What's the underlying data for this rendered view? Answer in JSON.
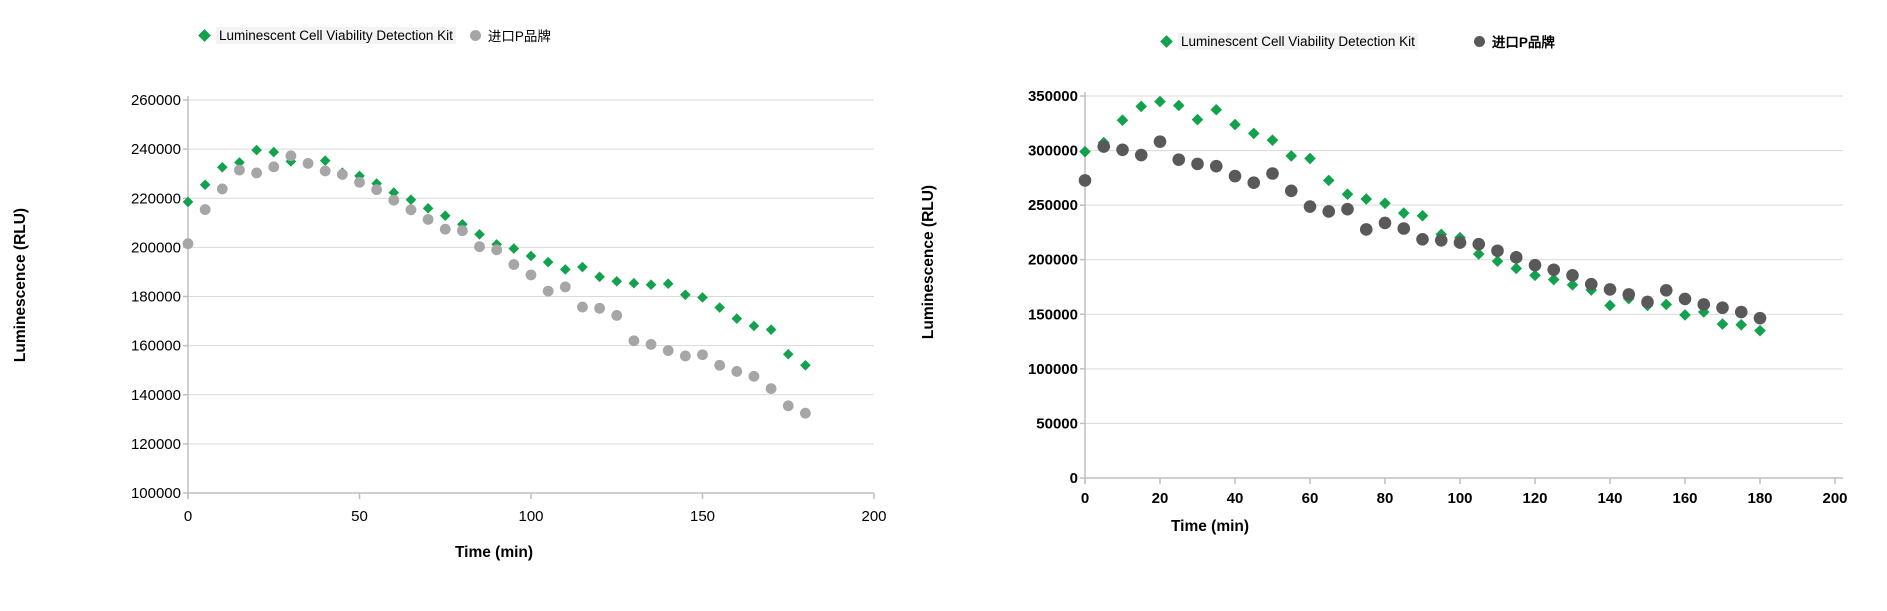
{
  "page": {
    "background": "#FFFFFF"
  },
  "chart_data": [
    {
      "type": "scatter",
      "position": "left",
      "title": "",
      "xlabel": "Time (min)",
      "ylabel": "Luminescence  (RLU)",
      "xlim": [
        0,
        200
      ],
      "ylim": [
        100000,
        260000
      ],
      "x_ticks": [
        0,
        50,
        100,
        150,
        200
      ],
      "y_ticks": [
        100000,
        120000,
        140000,
        160000,
        180000,
        200000,
        220000,
        240000,
        260000
      ],
      "grid": "horizontal",
      "legend_position": "top",
      "x": [
        0,
        5,
        10,
        15,
        20,
        25,
        30,
        35,
        40,
        45,
        50,
        55,
        60,
        65,
        70,
        75,
        80,
        85,
        90,
        95,
        100,
        105,
        110,
        115,
        120,
        125,
        130,
        135,
        140,
        145,
        150,
        155,
        160,
        165,
        170,
        175,
        180
      ],
      "series": [
        {
          "name": "Luminescent Cell Viability Detection Kit",
          "marker": "diamond",
          "color": "#12A24E",
          "values": [
            218500,
            225500,
            232600,
            234600,
            239600,
            238800,
            235000,
            234300,
            235300,
            230400,
            229100,
            226000,
            222300,
            219400,
            215900,
            212900,
            209400,
            205300,
            201200,
            199500,
            196500,
            194000,
            191000,
            192000,
            188000,
            186200,
            185400,
            184800,
            185200,
            180700,
            179600,
            175500,
            171000,
            168000,
            166500,
            156500,
            152000
          ]
        },
        {
          "name": "进口P品牌",
          "marker": "circle",
          "color": "#A6A6A6",
          "values": [
            201500,
            215400,
            223800,
            231500,
            230300,
            232800,
            237300,
            234200,
            231100,
            229700,
            226500,
            223500,
            219200,
            215300,
            211400,
            207400,
            206800,
            200300,
            199000,
            193000,
            188800,
            182200,
            183900,
            175700,
            175200,
            172300,
            162000,
            160500,
            158000,
            155800,
            156300,
            152000,
            149500,
            147500,
            142500,
            135500,
            132500
          ]
        }
      ]
    },
    {
      "type": "scatter",
      "position": "right",
      "title": "",
      "xlabel": "Time  (min)",
      "ylabel": "Luminescence  (RLU)",
      "xlim": [
        0,
        200
      ],
      "ylim": [
        0,
        350000
      ],
      "x_ticks": [
        0,
        20,
        40,
        60,
        80,
        100,
        120,
        140,
        160,
        180,
        200
      ],
      "y_ticks": [
        0,
        50000,
        100000,
        150000,
        200000,
        250000,
        300000,
        350000
      ],
      "grid": "horizontal",
      "legend_position": "top",
      "x": [
        0,
        5,
        10,
        15,
        20,
        25,
        30,
        35,
        40,
        45,
        50,
        55,
        60,
        65,
        70,
        75,
        80,
        85,
        90,
        95,
        100,
        105,
        110,
        115,
        120,
        125,
        130,
        135,
        140,
        145,
        150,
        155,
        160,
        165,
        170,
        175,
        180
      ],
      "series": [
        {
          "name": "Luminescent Cell Viability Detection Kit",
          "marker": "diamond",
          "color": "#12A24E",
          "values": [
            299000,
            307300,
            327800,
            340400,
            344900,
            341300,
            328400,
            337400,
            323800,
            315700,
            309500,
            295100,
            292700,
            272700,
            260000,
            255600,
            251700,
            242700,
            240300,
            223200,
            220200,
            205200,
            198600,
            192000,
            185700,
            181800,
            177000,
            172200,
            158100,
            164400,
            158100,
            159000,
            149400,
            152100,
            141000,
            140400,
            135000
          ]
        },
        {
          "name": "进口P品牌",
          "marker": "circle",
          "color": "#595959",
          "values": [
            272700,
            303700,
            300700,
            295900,
            308200,
            291700,
            287800,
            285700,
            276600,
            270600,
            279000,
            263100,
            248700,
            244200,
            246300,
            227700,
            233700,
            228600,
            218700,
            217800,
            215700,
            214200,
            208200,
            202200,
            195000,
            190800,
            185700,
            177600,
            172800,
            168200,
            161300,
            172000,
            164100,
            159000,
            156000,
            152100,
            146400
          ]
        }
      ]
    }
  ],
  "style": {
    "grid_color": "#D9D9D9",
    "axis_color": "#BFBFBF",
    "text_color": "#000000"
  }
}
